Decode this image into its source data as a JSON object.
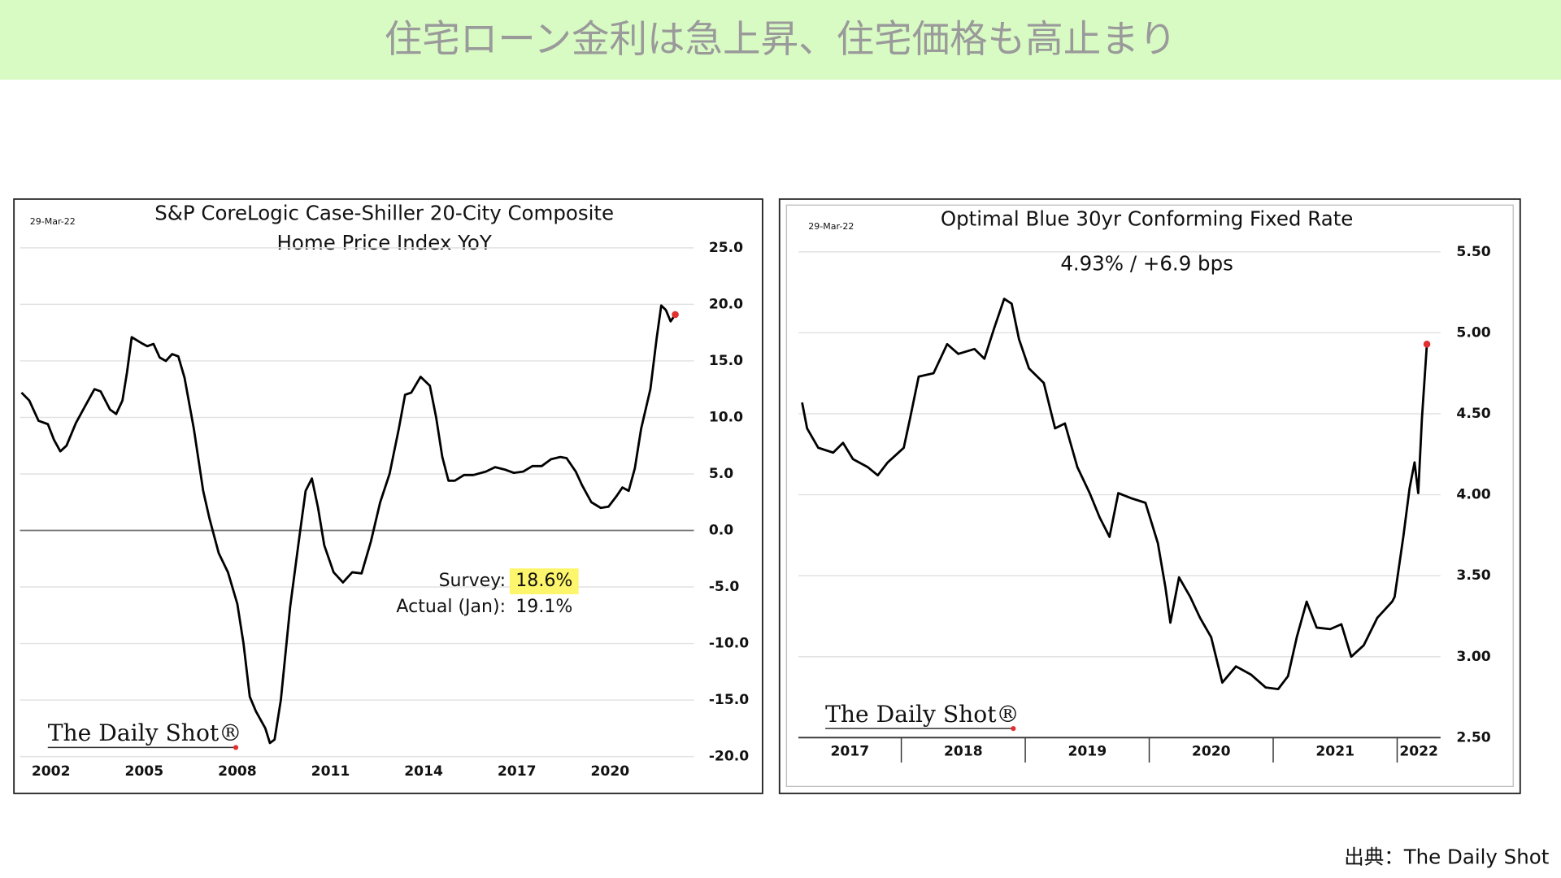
{
  "page_title": "住宅ローン金利は急上昇、住宅価格も高止まり",
  "source": "出典：The Daily Shot",
  "chart_data": [
    {
      "type": "line",
      "title": [
        "S&P CoreLogic Case-Shiller 20-City Composite",
        "Home Price Index YoY"
      ],
      "date": "29-Mar-22",
      "logo": "The Daily Shot®",
      "annotations": [
        {
          "label": "Survey:",
          "text": "18.6%",
          "highlight": "#fdf56b"
        },
        {
          "label": "Actual (Jan):",
          "text": "19.1%"
        }
      ],
      "color": "#000000",
      "end_marker_color": "#e03030",
      "grid": true,
      "zero_line": true,
      "y_axis_side": "right",
      "xlim": [
        2001,
        2022.7
      ],
      "xticks": [
        2002,
        2005,
        2008,
        2011,
        2014,
        2017,
        2020
      ],
      "ylim": [
        -20,
        25
      ],
      "yticks": [
        {
          "value": -20,
          "label": "-20.0"
        },
        {
          "value": -15,
          "label": "-15.0"
        },
        {
          "value": -10,
          "label": "-10.0"
        },
        {
          "value": -5,
          "label": "-5.0"
        },
        {
          "value": 0,
          "label": "0.0"
        },
        {
          "value": 5,
          "label": "5.0"
        },
        {
          "value": 10,
          "label": "10.0"
        },
        {
          "value": 15,
          "label": "15.0"
        },
        {
          "value": 20,
          "label": "20.0"
        },
        {
          "value": 25,
          "label": "25.0"
        }
      ],
      "x": [
        2001.05,
        2001.3,
        2001.6,
        2001.9,
        2002.1,
        2002.3,
        2002.5,
        2002.8,
        2003.1,
        2003.4,
        2003.6,
        2003.9,
        2004.1,
        2004.3,
        2004.45,
        2004.6,
        2004.9,
        2005.1,
        2005.3,
        2005.5,
        2005.7,
        2005.9,
        2006.1,
        2006.3,
        2006.6,
        2006.9,
        2007.1,
        2007.4,
        2007.7,
        2008.0,
        2008.2,
        2008.4,
        2008.6,
        2008.9,
        2009.05,
        2009.2,
        2009.4,
        2009.7,
        2010.0,
        2010.2,
        2010.4,
        2010.6,
        2010.8,
        2011.1,
        2011.4,
        2011.7,
        2012.0,
        2012.3,
        2012.6,
        2012.9,
        2013.2,
        2013.4,
        2013.6,
        2013.9,
        2014.2,
        2014.4,
        2014.6,
        2014.8,
        2015.0,
        2015.3,
        2015.6,
        2016.0,
        2016.3,
        2016.6,
        2016.9,
        2017.2,
        2017.5,
        2017.8,
        2018.1,
        2018.4,
        2018.6,
        2018.9,
        2019.1,
        2019.4,
        2019.7,
        2019.95,
        2020.2,
        2020.4,
        2020.6,
        2020.8,
        2021.0,
        2021.3,
        2021.5,
        2021.65,
        2021.8,
        2021.95,
        2022.1
      ],
      "values": [
        12.2,
        11.5,
        9.7,
        9.4,
        8.0,
        7.0,
        7.5,
        9.5,
        11.0,
        12.5,
        12.3,
        10.7,
        10.3,
        11.5,
        14.0,
        17.1,
        16.6,
        16.3,
        16.5,
        15.3,
        15.0,
        15.6,
        15.4,
        13.5,
        9.0,
        3.5,
        1.1,
        -2.0,
        -3.7,
        -6.5,
        -10.0,
        -14.7,
        -16.0,
        -17.5,
        -18.8,
        -18.5,
        -15.0,
        -6.8,
        -0.5,
        3.5,
        4.6,
        2.0,
        -1.3,
        -3.7,
        -4.6,
        -3.7,
        -3.8,
        -1.0,
        2.5,
        5.0,
        9.0,
        12.0,
        12.2,
        13.6,
        12.8,
        10.0,
        6.5,
        4.4,
        4.4,
        4.9,
        4.9,
        5.2,
        5.6,
        5.4,
        5.1,
        5.2,
        5.7,
        5.7,
        6.3,
        6.5,
        6.4,
        5.2,
        4.0,
        2.5,
        2.0,
        2.1,
        3.0,
        3.8,
        3.5,
        5.5,
        9.0,
        12.5,
        17.0,
        19.9,
        19.5,
        18.5,
        19.1
      ]
    },
    {
      "type": "line",
      "title": [
        "Optimal Blue 30yr Conforming Fixed Rate"
      ],
      "subtitle": "4.93%  /  +6.9 bps",
      "date": "29-Mar-22",
      "logo": "The Daily Shot®",
      "color": "#000000",
      "end_marker_color": "#e03030",
      "grid": true,
      "y_axis_side": "right",
      "xlim": [
        2017.17,
        2022.35
      ],
      "xticks": [
        2018,
        2019,
        2020,
        2021,
        2022
      ],
      "x_segment_labels": [
        "2017",
        "2018",
        "2019",
        "2020",
        "2021",
        "2022"
      ],
      "ylim": [
        2.5,
        5.5
      ],
      "yticks": [
        {
          "value": 2.5,
          "label": "2.50"
        },
        {
          "value": 3,
          "label": "3.00"
        },
        {
          "value": 3.5,
          "label": "3.50"
        },
        {
          "value": 4,
          "label": "4.00"
        },
        {
          "value": 4.5,
          "label": "4.50"
        },
        {
          "value": 5,
          "label": "5.00"
        },
        {
          "value": 5.5,
          "label": "5.50"
        }
      ],
      "x": [
        2017.2,
        2017.24,
        2017.33,
        2017.45,
        2017.53,
        2017.61,
        2017.73,
        2017.81,
        2017.89,
        2018.02,
        2018.07,
        2018.14,
        2018.26,
        2018.37,
        2018.46,
        2018.59,
        2018.67,
        2018.75,
        2018.83,
        2018.89,
        2018.95,
        2019.03,
        2019.15,
        2019.24,
        2019.32,
        2019.42,
        2019.52,
        2019.6,
        2019.68,
        2019.75,
        2019.85,
        2019.97,
        2020.07,
        2020.13,
        2020.17,
        2020.24,
        2020.33,
        2020.41,
        2020.5,
        2020.59,
        2020.7,
        2020.82,
        2020.94,
        2021.04,
        2021.12,
        2021.19,
        2021.27,
        2021.35,
        2021.46,
        2021.55,
        2021.63,
        2021.73,
        2021.84,
        2021.96,
        2021.98,
        2022.05,
        2022.1,
        2022.14,
        2022.17,
        2022.2,
        2022.24
      ],
      "values": [
        4.57,
        4.41,
        4.29,
        4.26,
        4.32,
        4.22,
        4.17,
        4.12,
        4.2,
        4.29,
        4.47,
        4.73,
        4.75,
        4.93,
        4.87,
        4.9,
        4.84,
        5.03,
        5.21,
        5.18,
        4.96,
        4.78,
        4.69,
        4.41,
        4.44,
        4.17,
        4.01,
        3.86,
        3.74,
        4.01,
        3.98,
        3.95,
        3.7,
        3.43,
        3.21,
        3.49,
        3.37,
        3.24,
        3.12,
        2.84,
        2.94,
        2.89,
        2.81,
        2.8,
        2.88,
        3.12,
        3.34,
        3.18,
        3.17,
        3.2,
        3.0,
        3.07,
        3.24,
        3.34,
        3.37,
        3.74,
        4.04,
        4.2,
        4.01,
        4.47,
        4.93
      ]
    }
  ]
}
